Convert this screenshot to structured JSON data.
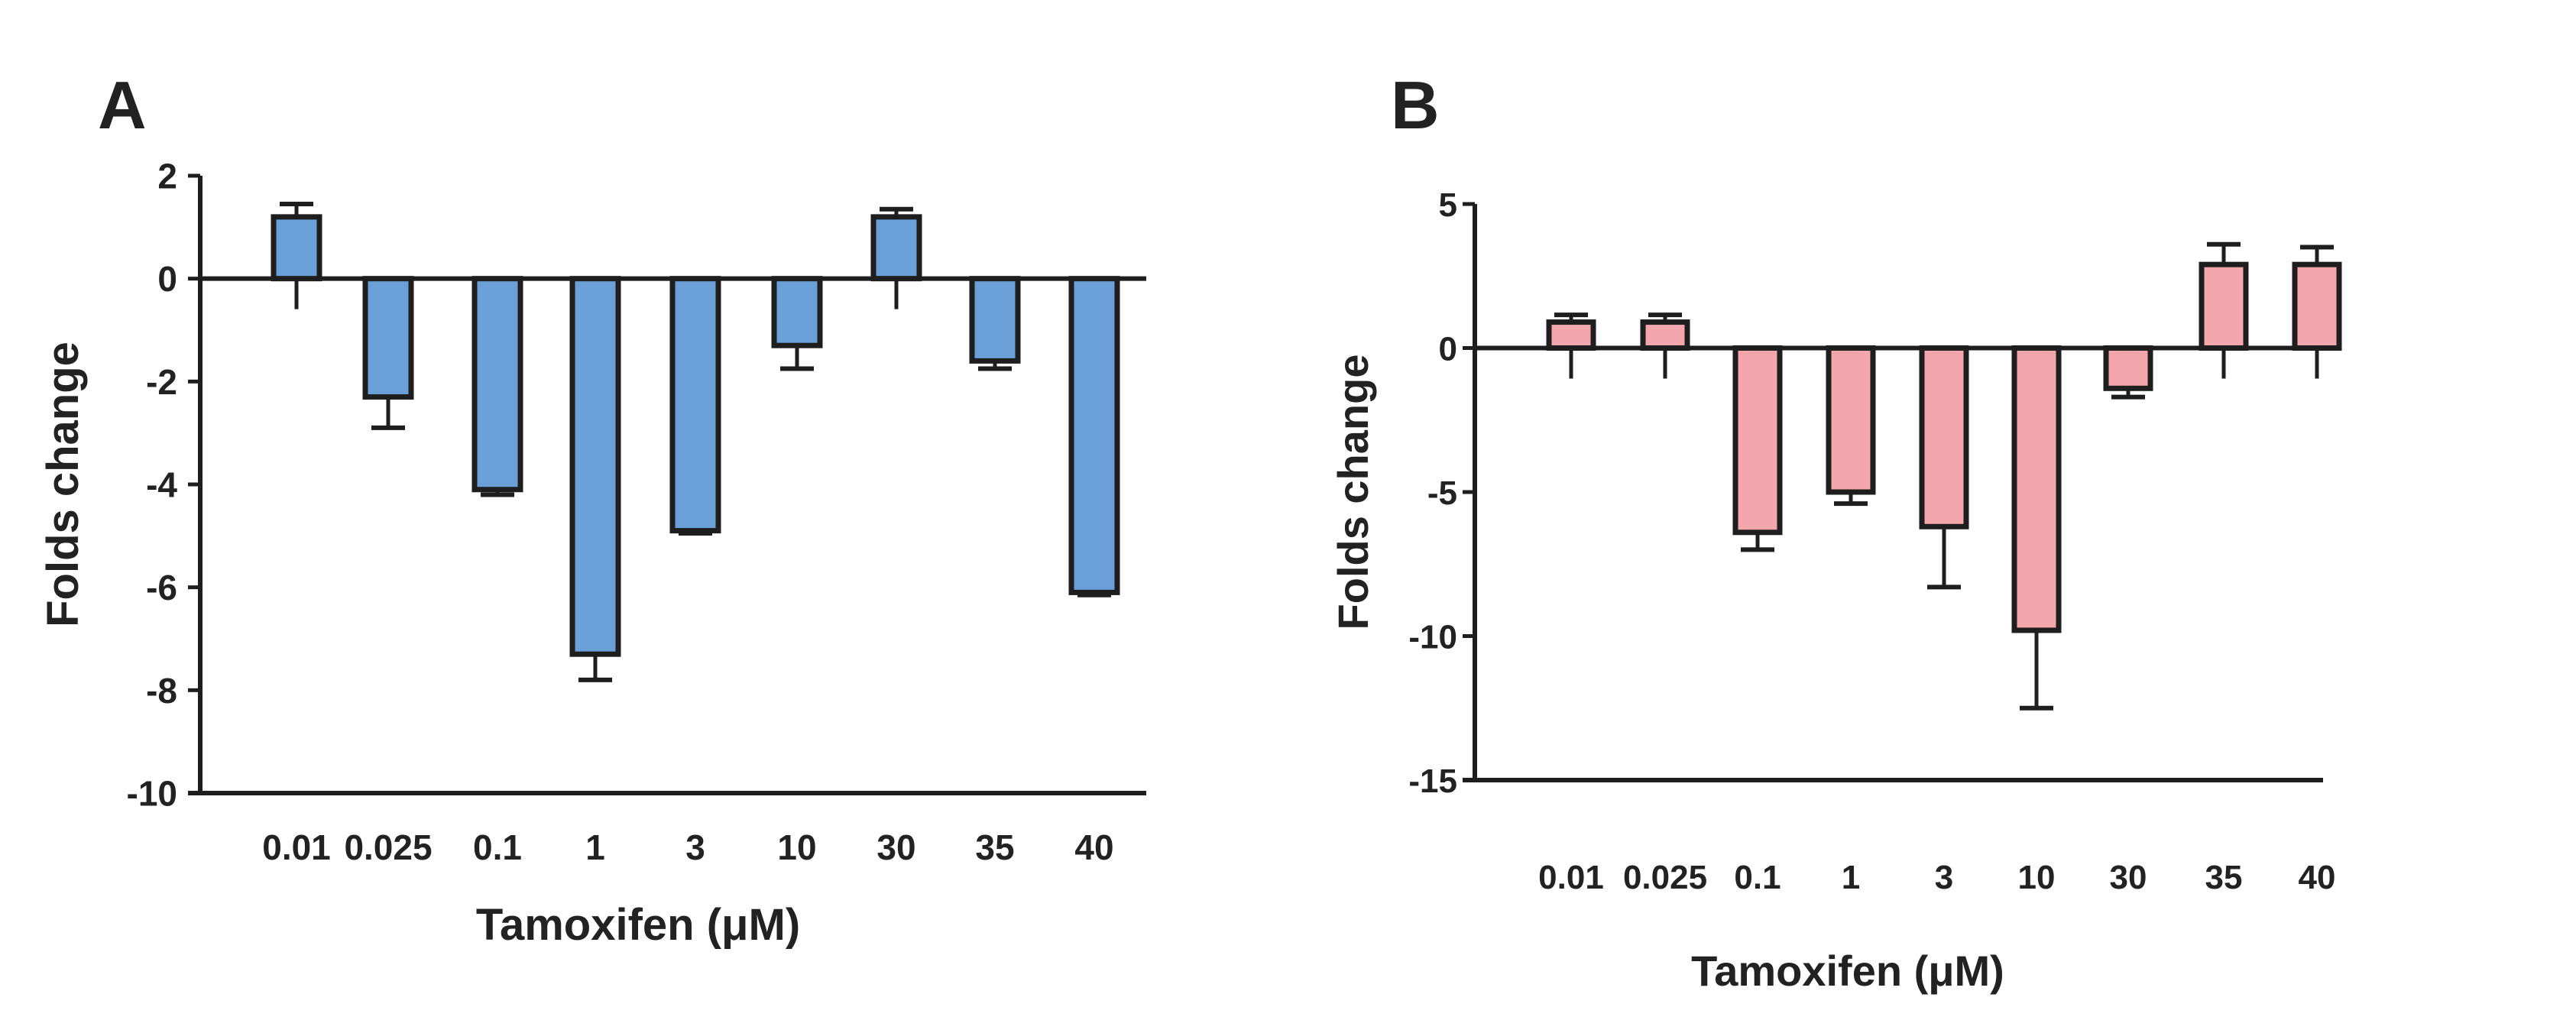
{
  "chart_data": [
    {
      "panel": "A",
      "type": "bar",
      "title": "",
      "xlabel": "Tamoxifen (μM)",
      "ylabel": "Folds change",
      "categories": [
        "0.01",
        "0.025",
        "0.1",
        "1",
        "3",
        "10",
        "30",
        "35",
        "40"
      ],
      "values": [
        1.2,
        -2.3,
        -4.1,
        -7.3,
        -4.9,
        -1.3,
        1.2,
        -1.6,
        -6.1
      ],
      "errors": [
        0.25,
        0.6,
        0.1,
        0.5,
        0.05,
        0.45,
        0.15,
        0.15,
        0.05
      ],
      "ylim": [
        -10,
        2
      ],
      "yticks": [
        2,
        0,
        -2,
        -4,
        -6,
        -8,
        -10
      ],
      "ytick_labels": [
        "2",
        "0",
        "-2",
        "-4",
        "-6",
        "-8",
        "-10"
      ],
      "bar_color": "#6a9fd8",
      "edge_color": "#1e1e1e"
    },
    {
      "panel": "B",
      "type": "bar",
      "title": "",
      "xlabel": "Tamoxifen (μM)",
      "ylabel": "Folds change",
      "categories": [
        "0.01",
        "0.025",
        "0.1",
        "1",
        "3",
        "10",
        "30",
        "35",
        "40"
      ],
      "values": [
        0.9,
        0.9,
        -6.4,
        -5.0,
        -6.2,
        -9.8,
        -1.4,
        2.9,
        2.9
      ],
      "errors": [
        0.25,
        0.25,
        0.6,
        0.4,
        2.1,
        2.7,
        0.3,
        0.7,
        0.6
      ],
      "ylim": [
        -15,
        5
      ],
      "yticks": [
        5,
        0,
        -5,
        -10,
        -15
      ],
      "ytick_labels": [
        "5",
        "0",
        "-5",
        "-10",
        "-15"
      ],
      "bar_color": "#f4a6ad",
      "edge_color": "#1e1e1e"
    }
  ]
}
